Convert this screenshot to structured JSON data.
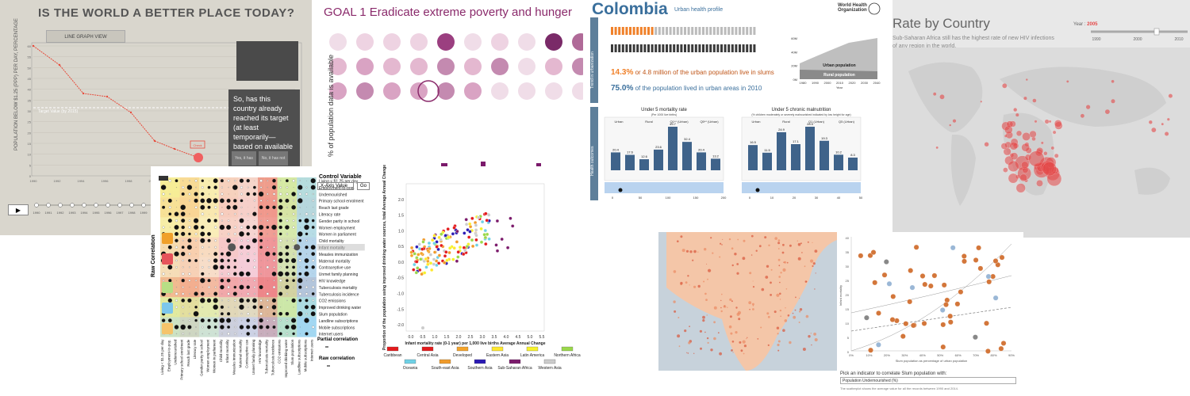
{
  "panel1": {
    "title": "IS THE WORLD A BETTER PLACE TODAY?",
    "tab_label": "LINE GRAPH VIEW",
    "ylabel": "POPULATION BELOW $1.25 (PPP) PER DAY, PERCENTAGE",
    "target_label": "Target Value (by 2015)",
    "callout": "So, has this country already reached its target (at least temporarily—based on available data)?",
    "yes_label": "Yes, it has",
    "no_label": "No, it has not",
    "check_label": "Check",
    "x_ticks": [
      "1990",
      "1992",
      "1994",
      "1996",
      "1998",
      "2000",
      "2002",
      "2004",
      "2006",
      "2008",
      "2010",
      "2012"
    ],
    "y_ticks": [
      "0",
      "5",
      "10",
      "15",
      "20",
      "25",
      "30",
      "35",
      "40",
      "45",
      "50",
      "55",
      "60"
    ],
    "timeline_years": [
      "1990",
      "1991",
      "1992",
      "1993",
      "1994",
      "1995",
      "1996",
      "1997",
      "1998",
      "1999",
      "2000",
      "2001",
      "2002",
      "2003",
      "2004",
      "2005",
      "2006",
      "2007",
      "2008",
      "2009",
      "2010",
      "2011",
      "2012"
    ],
    "play_label": "▶",
    "accent": "#e74c3c"
  },
  "panel2": {
    "title": "GOAL 1 Eradicate extreme poverty and hunger",
    "ylabel": "% of population data is available",
    "color": "#8a2a6b"
  },
  "panel3": {
    "title": "Partial Correlation",
    "control_label": "Control Variable",
    "select_value": "X-Axis Value",
    "go_label": "Go",
    "side_label": "Raw Correlation",
    "indicators": [
      "Living < $1.25 per day",
      "Employment-to-pop.",
      "Undernourished",
      "Primary school enrolment",
      "Reach last grade",
      "Literacy rate",
      "Gender parity in school",
      "Women employment",
      "Women in parliament",
      "Child mortality",
      "Infant mortality",
      "Measles immunization",
      "Maternal mortality",
      "Contraceptive use",
      "Unmet family planning",
      "HIV knowledge",
      "Tuberculosis mortality",
      "Tuberculosis incidence",
      "CO2 emissions",
      "Improved drinking water",
      "Slum population",
      "Landline subscriptions",
      "Mobile subscriptions",
      "Internet users"
    ],
    "legend_partial": "Partial correlation",
    "legend_raw": "Raw correlation",
    "group_colors": [
      "#f3e66b",
      "#f5c46a",
      "#f6e59a",
      "#f3b3b3",
      "#f0b8c8",
      "#e6535a",
      "#b7de85",
      "#7cc7ec"
    ]
  },
  "panel4": {
    "ylabel": "Proportion of the population using improved drinking water sources, total Average Annual Change",
    "xlabel": "Infant mortality rate (0-1 year) per 1,000 live births Average Annual Change",
    "x_ticks": [
      "0.0",
      "0.5",
      "1.0",
      "1.5",
      "2.0",
      "2.5",
      "3.0",
      "3.5",
      "4.0",
      "4.5",
      "5.0",
      "5.5"
    ],
    "y_ticks": [
      "2.0",
      "1.5",
      "1.0",
      "0.5",
      "0.0",
      "-0.5",
      "-1.0",
      "-1.5",
      "-2.0"
    ],
    "legend": [
      {
        "name": "Caribbean",
        "color": "#e41a1c"
      },
      {
        "name": "Central Asia",
        "color": "#e31a1c"
      },
      {
        "name": "Developed",
        "color": "#f4a32a"
      },
      {
        "name": "Eastern Asia",
        "color": "#ffe82e"
      },
      {
        "name": "Latin America",
        "color": "#f6f22a"
      },
      {
        "name": "Northern Africa",
        "color": "#9ad84a"
      },
      {
        "name": "Oceania",
        "color": "#6fd1e6"
      },
      {
        "name": "South-east Asia",
        "color": "#f09a2a"
      },
      {
        "name": "Southern Asia",
        "color": "#2a1ab4"
      },
      {
        "name": "Sub-Saharan Africa",
        "color": "#7b1a6b"
      },
      {
        "name": "Western Asia",
        "color": "#cccccc"
      }
    ]
  },
  "panel5": {
    "country": "Colombia",
    "subtitle": "Urban health profile",
    "org": "World Health Organization",
    "side1": "Trend in urbanization",
    "side2": "Health outcomes",
    "slum_stat": "14.3%",
    "slum_text": "or 4.8 million of the urban population live in slums",
    "urban_stat": "75.0%",
    "urban_text": "of the population lived in urban areas in 2010",
    "area_labels": [
      "Urban population",
      "Rural population"
    ],
    "area_y": [
      "60M",
      "40M",
      "20M",
      "0M"
    ],
    "area_x": [
      "1980",
      "1990",
      "2000",
      "2010",
      "2020",
      "2030",
      "2040"
    ],
    "area_xlabel": "Year",
    "chart1_title": "Under 5 mortality rate",
    "chart1_sub": "(Per 1000 live births)",
    "chart1_groups": [
      "Urban",
      "Rural",
      "Q1** (Urban)",
      "Q5** (Urban)"
    ],
    "chart1_values": [
      20.4,
      17.6,
      12.6,
      23.6,
      49.7,
      32.4,
      20.4,
      13.2
    ],
    "chart2_title": "Under 5 chronic malnutrition",
    "chart2_sub": "(% children moderately or severely malnourished indicated by low height for age)",
    "chart2_groups": [
      "Urban",
      "Rural",
      "Q1 (Urban)",
      "Q5 (Urban)"
    ],
    "chart2_values": [
      16.5,
      11.5,
      24.9,
      17.1,
      28.5,
      19.3,
      10.2,
      8.3
    ],
    "chart_color": "#3f638a",
    "bottom_axis1": [
      "0",
      "50",
      "100",
      "150",
      "200"
    ],
    "bottom_axis2": [
      "0",
      "10",
      "20",
      "30",
      "40",
      "50"
    ]
  },
  "panel6": {
    "title": "Rate by Country",
    "desc": "Sub-Saharan Africa still has the highest rate of new HIV infections of any region in the world.",
    "year_label": "Year :",
    "year_value": "2005",
    "slider_ticks": [
      "1990",
      "2000",
      "2010"
    ],
    "bubble_color": "#e54848"
  },
  "panel8": {
    "ylabel": "Infant mortality",
    "xlabel": "Slum population as percentage of urban population",
    "x_ticks": [
      "0%",
      "10%",
      "20%",
      "30%",
      "40%",
      "50%",
      "60%",
      "70%",
      "80%",
      "90%"
    ],
    "y_ticks": [
      "40",
      "35",
      "30",
      "25",
      "20",
      "15",
      "10",
      "5",
      "0"
    ],
    "control": "Pick an indicator to correlate Slum population with:",
    "select_value": "Population Undernourished (%)",
    "note": "The scatterplot shows the average value for all the records between 1990 and 2014.",
    "dot_color": "#d3763a"
  }
}
